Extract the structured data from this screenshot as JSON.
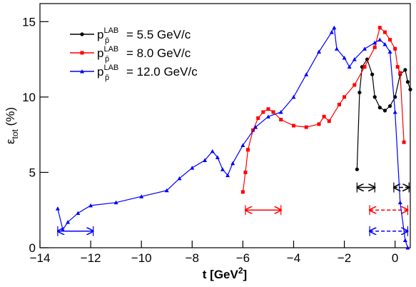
{
  "chart_data": {
    "type": "line",
    "x_label": {
      "text": "t [GeV",
      "sup": "2",
      "after": "]"
    },
    "y_label": {
      "base": "ε",
      "sub": "tot",
      "after": " (%)"
    },
    "legend_symbol": {
      "base": "p",
      "sup": "LAB",
      "sub": "p̄"
    },
    "xlim": [
      -14,
      0.6
    ],
    "ylim": [
      0,
      16.2
    ],
    "xticks": [
      {
        "value": -14,
        "label": "−14"
      },
      {
        "value": -12,
        "label": "−12"
      },
      {
        "value": -10,
        "label": "−10"
      },
      {
        "value": -8,
        "label": "−8"
      },
      {
        "value": -6,
        "label": "−6"
      },
      {
        "value": -4,
        "label": "−4"
      },
      {
        "value": -2,
        "label": "−2"
      },
      0
    ],
    "yticks": [
      0,
      5,
      10,
      15
    ],
    "series": [
      {
        "name": "= 5.5 GeV/c",
        "color": "#000000",
        "marker": "circle",
        "x": [
          -1.5,
          -1.4,
          -1.3,
          -1.1,
          -0.9,
          -0.8,
          -0.6,
          -0.4,
          -0.2,
          0,
          0.2,
          0.4,
          0.5,
          0.6
        ],
        "values": [
          5.2,
          10.3,
          12.0,
          12.5,
          11.5,
          10.0,
          9.3,
          9.1,
          9.4,
          10.0,
          11.5,
          11.8,
          11.0,
          10.5
        ]
      },
      {
        "name": "= 8.0 GeV/c",
        "color": "#ff0000",
        "marker": "square",
        "x": [
          -6,
          -5.9,
          -5.8,
          -5.6,
          -5.4,
          -5.2,
          -5,
          -4.8,
          -4.5,
          -4,
          -3.5,
          -3,
          -2.8,
          -2.6,
          -2.2,
          -2,
          -1.6,
          -1.2,
          -0.8,
          -0.6,
          -0.4,
          -0.2,
          0,
          0.1,
          0.2,
          0.35
        ],
        "values": [
          3.7,
          5.0,
          6.5,
          7.8,
          8.6,
          9.0,
          9.2,
          9.0,
          8.5,
          8.1,
          8.0,
          8.2,
          8.7,
          8.4,
          9.5,
          10.0,
          10.8,
          12.0,
          13.3,
          14.6,
          14.3,
          13.8,
          13.2,
          12.0,
          11.6,
          7.0
        ]
      },
      {
        "name": "= 12.0 GeV/c",
        "color": "#0000ff",
        "marker": "triangle",
        "x": [
          -13.3,
          -13.1,
          -12.9,
          -12.5,
          -12,
          -11,
          -10,
          -9,
          -8.5,
          -8,
          -7.5,
          -7.2,
          -7,
          -6.8,
          -6.6,
          -6.4,
          -6,
          -5.5,
          -5,
          -4.5,
          -4,
          -3.5,
          -3,
          -2.5,
          -2.4,
          -2.3,
          -2,
          -1.8,
          -1.6,
          -1.2,
          -0.8,
          -0.6,
          -0.4,
          -0.2,
          0,
          0.2,
          0.4,
          0.5
        ],
        "values": [
          2.6,
          1.2,
          1.7,
          2.3,
          2.8,
          3.0,
          3.4,
          3.8,
          4.6,
          5.3,
          5.8,
          6.4,
          6.0,
          5.2,
          4.8,
          5.6,
          6.8,
          8.0,
          8.7,
          9.0,
          10.0,
          11.5,
          13.0,
          14.3,
          14.6,
          13.2,
          12.6,
          12.0,
          12.5,
          13.2,
          13.6,
          13.8,
          13.5,
          13.0,
          9.0,
          3.0,
          0.5,
          0.0
        ]
      }
    ],
    "intervals": [
      {
        "color": "#000000",
        "x": [
          -1.5,
          -0.8
        ],
        "y": 4.0,
        "dashed": false
      },
      {
        "color": "#000000",
        "x": [
          -0.05,
          0.55
        ],
        "y": 4.0,
        "dashed": true
      },
      {
        "color": "#ff0000",
        "x": [
          -5.9,
          -4.5
        ],
        "y": 2.5,
        "dashed": false
      },
      {
        "color": "#ff0000",
        "x": [
          -1.0,
          0.5
        ],
        "y": 2.5,
        "dashed": true
      },
      {
        "color": "#0000ff",
        "x": [
          -13.3,
          -11.9
        ],
        "y": 1.1,
        "dashed": false
      },
      {
        "color": "#0000ff",
        "x": [
          -1.0,
          0.5
        ],
        "y": 1.1,
        "dashed": true
      }
    ]
  }
}
